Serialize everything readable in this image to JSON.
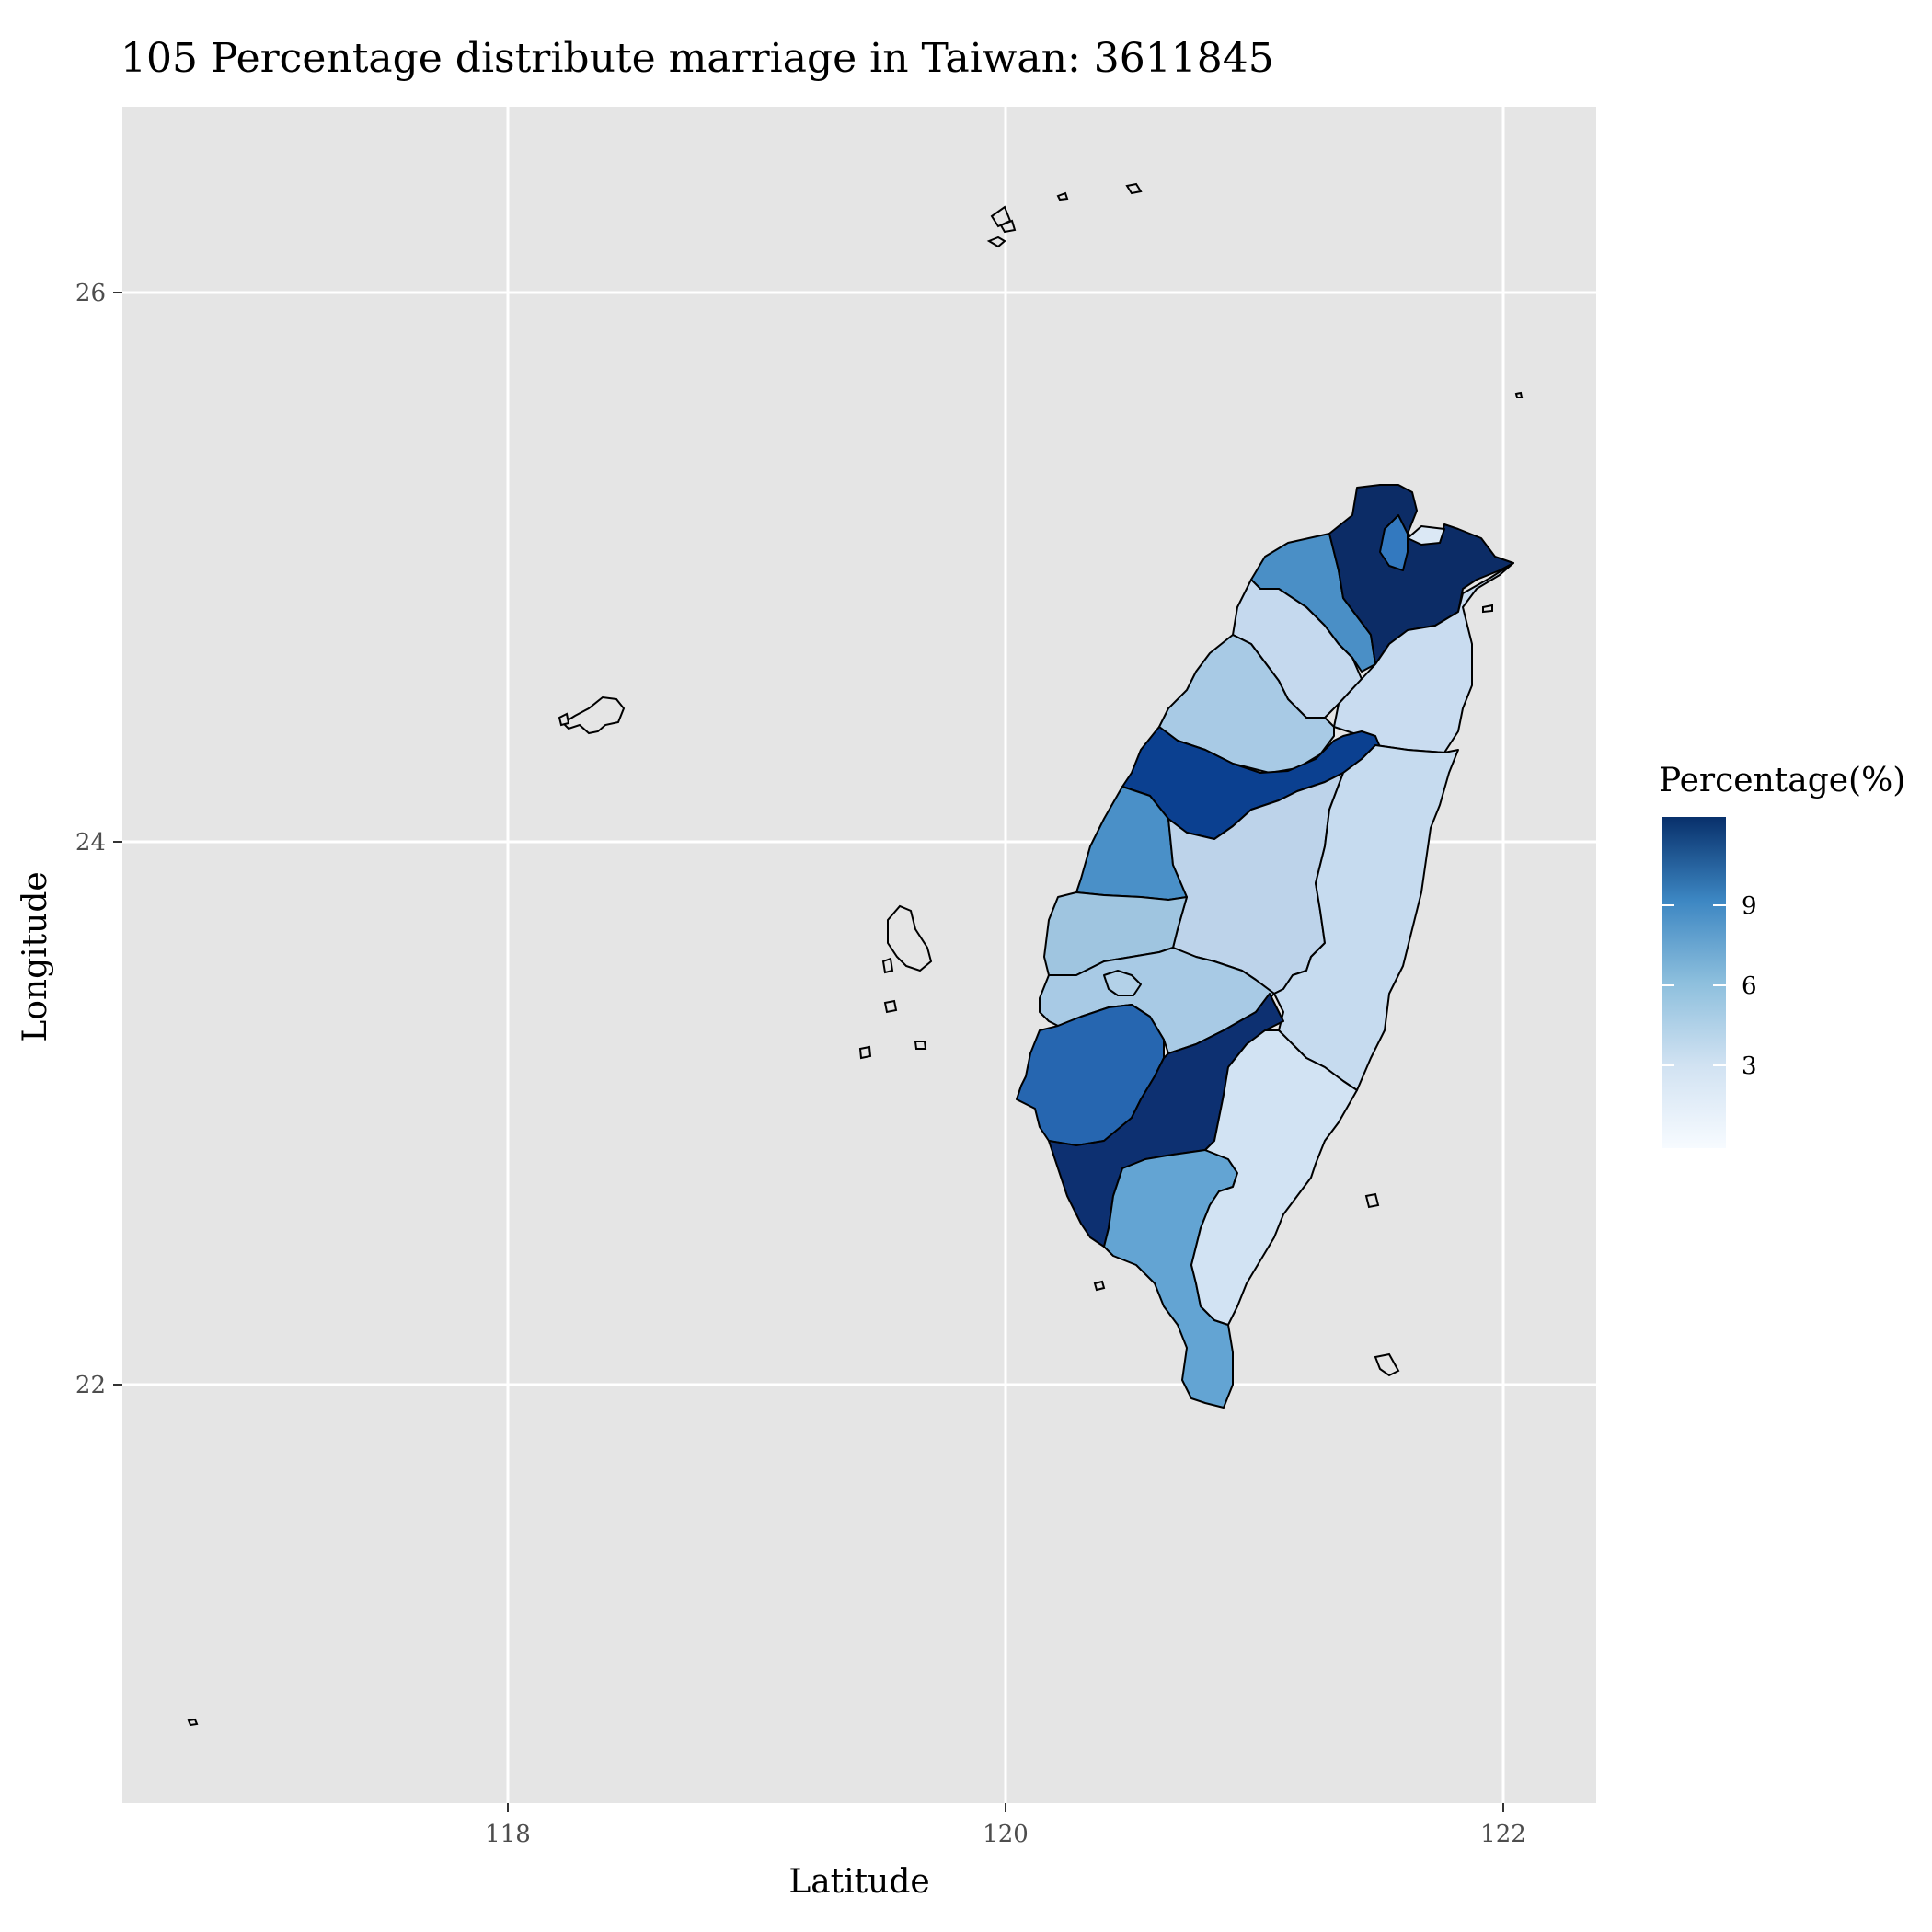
{
  "chart_data": {
    "type": "map",
    "title": "105 Percentage distribute marriage in Taiwan:  3611845",
    "xlabel": "Latitude",
    "ylabel": "Longitude",
    "x_ticks": [
      118,
      120,
      122
    ],
    "y_ticks": [
      22,
      24,
      26
    ],
    "xlim": [
      116.5,
      122.4
    ],
    "ylim": [
      20.5,
      26.8
    ],
    "grid": true,
    "legend": {
      "title": "Percentage(%)",
      "ticks": [
        3,
        6,
        9
      ],
      "range": [
        0,
        12
      ],
      "position": "right",
      "low_color": "#f7fbff",
      "high_color": "#08306b"
    }
  }
}
